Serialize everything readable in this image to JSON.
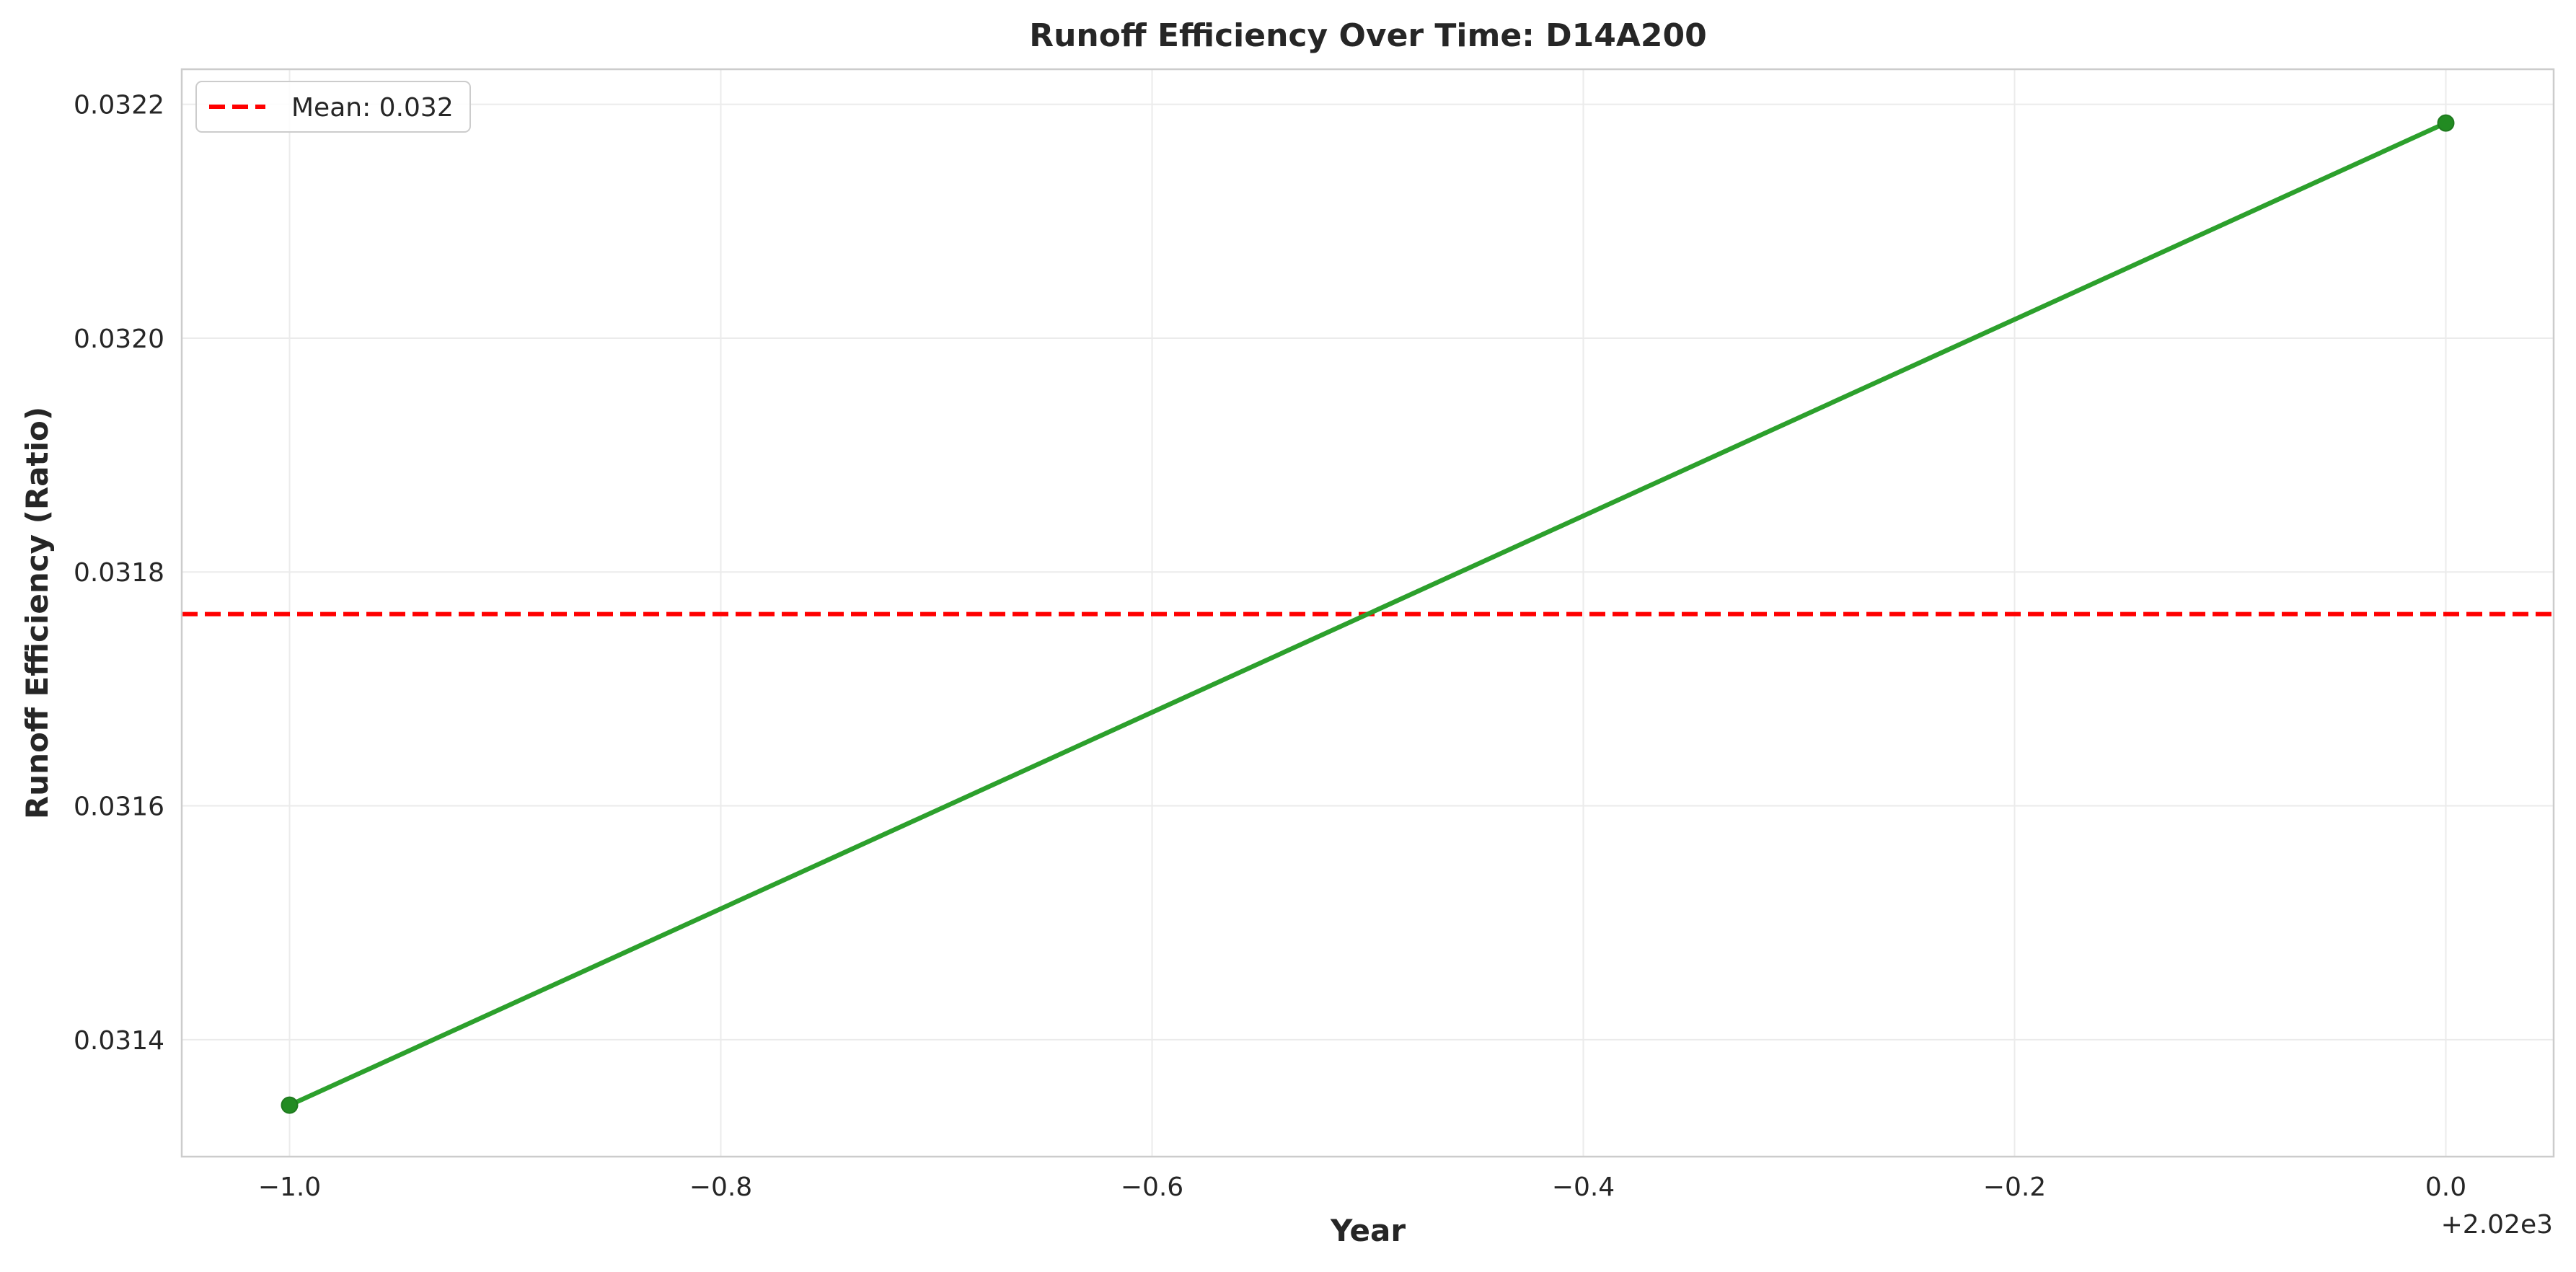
{
  "chart_data": {
    "type": "line",
    "title": "Runoff Efficiency Over Time: D14A200",
    "xlabel": "Year",
    "ylabel": "Runoff Efficiency (Ratio)",
    "x_offset_label": "+2.02e3",
    "xlim": [
      -1.05,
      0.05
    ],
    "ylim": [
      0.0313,
      0.03223
    ],
    "x_ticks": [
      -1.0,
      -0.8,
      -0.6,
      -0.4,
      -0.2,
      0.0
    ],
    "x_tick_labels": [
      "−1.0",
      "−0.8",
      "−0.6",
      "−0.4",
      "−0.2",
      "0.0"
    ],
    "y_ticks": [
      0.0314,
      0.0316,
      0.0318,
      0.032,
      0.0322
    ],
    "y_tick_labels": [
      "0.0314",
      "0.0316",
      "0.0318",
      "0.0320",
      "0.0322"
    ],
    "grid": true,
    "legend_position": "upper-left",
    "series": [
      {
        "color": "#2ca02c",
        "marker_color": "#228b22",
        "x": [
          -1.0,
          0.0
        ],
        "y": [
          0.031344,
          0.032184
        ]
      }
    ],
    "reference_lines": [
      {
        "label": "Mean: 0.032",
        "orientation": "horizontal",
        "y": 0.031764,
        "color": "#ff0000",
        "style": "dashed"
      }
    ]
  }
}
